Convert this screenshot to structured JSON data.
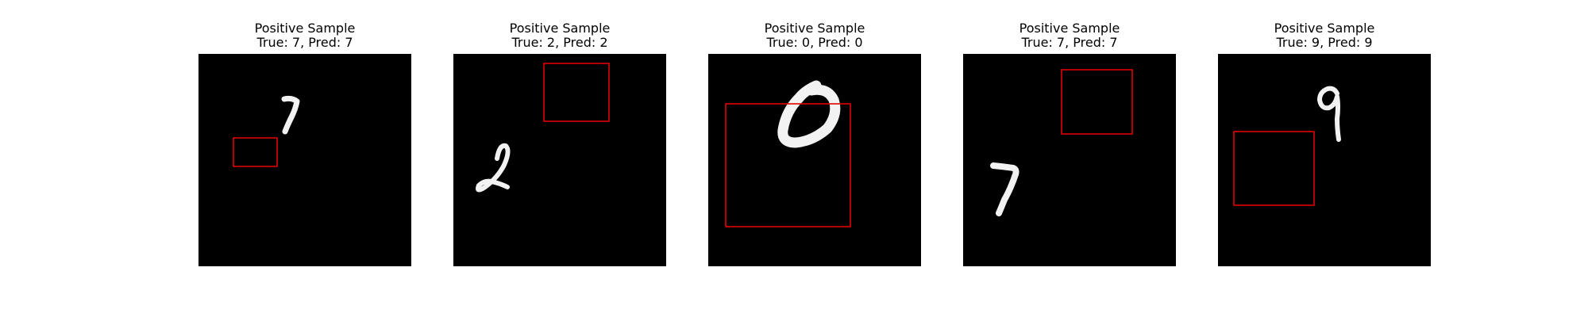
{
  "panels": [
    {
      "title": "Positive Sample",
      "true_label": "True: 7",
      "pred_label": "Pred: 7",
      "digit": "7"
    },
    {
      "title": "Positive Sample",
      "true_label": "True: 2",
      "pred_label": "Pred: 2",
      "digit": "2"
    },
    {
      "title": "Positive Sample",
      "true_label": "True: 0",
      "pred_label": "Pred: 0",
      "digit": "0"
    },
    {
      "title": "Positive Sample",
      "true_label": "True: 7",
      "pred_label": "Pred: 7",
      "digit": "7"
    },
    {
      "title": "Positive Sample",
      "true_label": "True: 9",
      "pred_label": "Pred: 9",
      "digit": "9"
    }
  ],
  "colors": {
    "background": "#000000",
    "digit_stroke": "#f2f2f2",
    "box_stroke": "#e00000"
  }
}
